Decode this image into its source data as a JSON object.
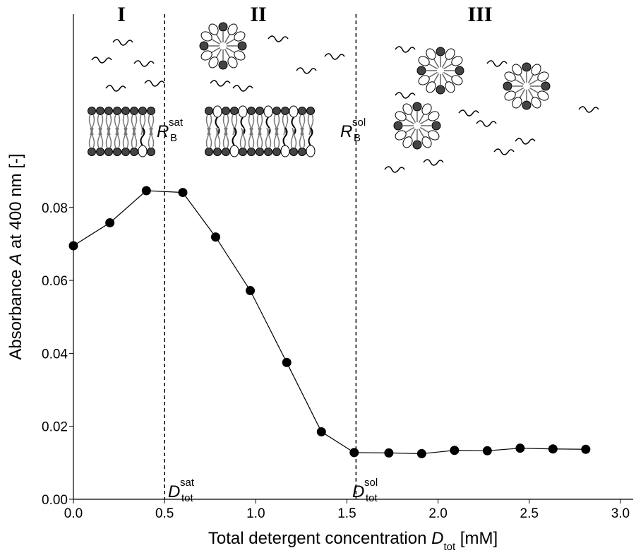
{
  "chart_data": {
    "type": "line",
    "x_label": [
      "Total detergent concentration ",
      "D",
      "tot",
      " [mM]"
    ],
    "y_label": [
      "Absorbance ",
      "A",
      " at 400 nm [-]"
    ],
    "x": [
      0,
      0.2,
      0.4,
      0.6,
      0.78,
      0.97,
      1.17,
      1.36,
      1.54,
      1.73,
      1.91,
      2.09,
      2.27,
      2.45,
      2.63,
      2.81
    ],
    "series": [
      {
        "color": "#000000",
        "values": [
          0.0695,
          0.0758,
          0.0846,
          0.0841,
          0.0719,
          0.0572,
          0.0375,
          0.0185,
          0.0128,
          0.0127,
          0.0125,
          0.0134,
          0.0133,
          0.014,
          0.0138,
          0.0137
        ]
      }
    ],
    "xlim": [
      0,
      3.07
    ],
    "ylim": [
      0,
      0.133
    ],
    "xticks": [
      {
        "value": 0,
        "label": "0.0"
      },
      {
        "value": 0.5,
        "label": "0.5"
      },
      {
        "value": 1,
        "label": "1.0"
      },
      {
        "value": 1.5,
        "label": "1.5"
      },
      {
        "value": 2,
        "label": "2.0"
      },
      {
        "value": 2.5,
        "label": "2.5"
      },
      {
        "value": 3,
        "label": "3.0"
      }
    ],
    "yticks": [
      {
        "value": 0,
        "label": "0.00"
      },
      {
        "value": 0.02,
        "label": "0.02"
      },
      {
        "value": 0.04,
        "label": "0.04"
      },
      {
        "value": 0.06,
        "label": "0.06"
      },
      {
        "value": 0.08,
        "label": "0.08"
      }
    ],
    "vlines": [
      0.5,
      1.55
    ],
    "regions": [
      "I",
      "II",
      "III"
    ],
    "annotations": [
      {
        "main": "R",
        "sub": "B",
        "sup": "sat"
      },
      {
        "main": "R",
        "sub": "B",
        "sup": "sol"
      },
      {
        "main": "D",
        "sub": "tot",
        "sup": "sat"
      },
      {
        "main": "D",
        "sub": "tot",
        "sup": "sol"
      }
    ]
  }
}
